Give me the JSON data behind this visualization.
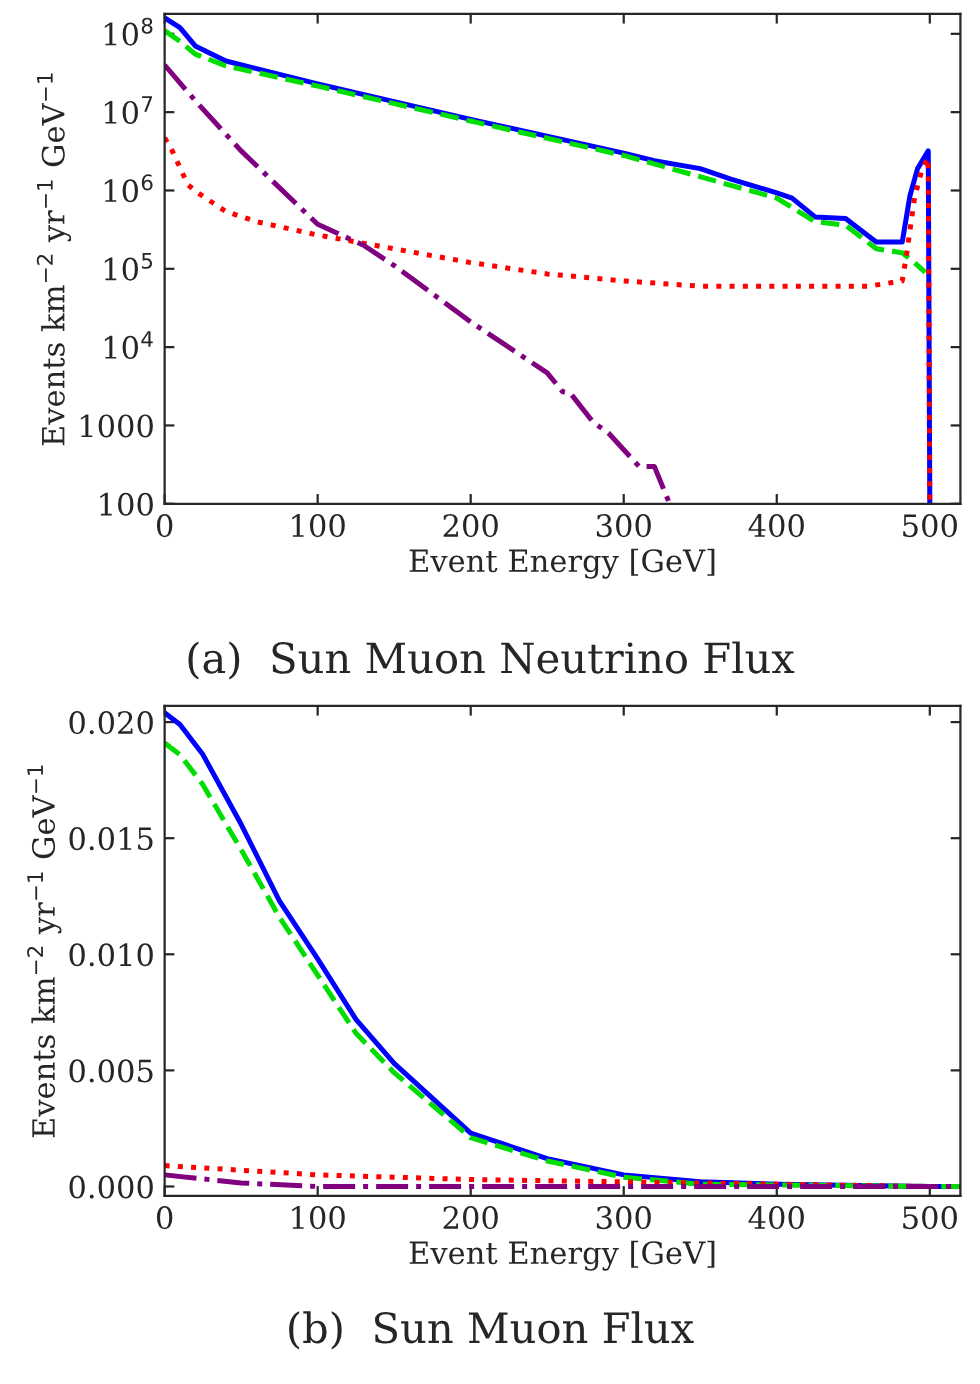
{
  "chart_data": [
    {
      "type": "line",
      "xlabel": "Event Energy [GeV]",
      "ylabel": "Events km$^{−2}$ yr$^{−1}$ GeV$^{−1}$",
      "log": "y",
      "xlim": [
        0,
        520
      ],
      "xticks": [
        0,
        100,
        200,
        300,
        400,
        500
      ],
      "ylim": [
        100,
        180000000
      ],
      "yticks": [
        {
          "value": 100000000,
          "label": "10$^{8}$"
        },
        {
          "value": 10000000,
          "label": "10$^{7}$"
        },
        {
          "value": 1000000,
          "label": "10$^{6}$"
        },
        {
          "value": 100000,
          "label": "10$^{5}$"
        },
        {
          "value": 10000,
          "label": "10$^{4}$"
        },
        1000,
        100
      ],
      "grid": false,
      "legend": false,
      "annotations": [
        "(a)  Sun Muon Neutrino Flux"
      ],
      "series": [
        {
          "color": "#0000ff",
          "line_style": "solid",
          "x": [
            0,
            10,
            20,
            40,
            100,
            200,
            300,
            320,
            350,
            370,
            400,
            410,
            425,
            445,
            465,
            482,
            487,
            492,
            499,
            500
          ],
          "values": [
            160000000,
            120000000,
            70000000,
            45000000,
            23000000,
            8100000,
            3000000,
            2400000,
            1900000,
            1400000,
            930000,
            800000,
            460000,
            440000,
            220000,
            220000,
            850000,
            1900000,
            3200000,
            100
          ]
        },
        {
          "color": "#00dd00",
          "line_style": "dashed",
          "x": [
            0,
            10,
            20,
            40,
            100,
            200,
            300,
            400,
            425,
            445,
            465,
            482,
            490,
            497
          ],
          "values": [
            110000000,
            80000000,
            55000000,
            39000000,
            21500000,
            7700000,
            2800000,
            800000,
            400000,
            360000,
            180000,
            160000,
            120000,
            90000
          ]
        },
        {
          "color": "#ff0000",
          "line_style": "dotted",
          "x": [
            0,
            5,
            15,
            20,
            40,
            60,
            100,
            150,
            200,
            250,
            300,
            350,
            400,
            460,
            482,
            485,
            490,
            495,
            499,
            500
          ],
          "values": [
            4700000,
            3200000,
            1200000,
            980000,
            540000,
            400000,
            270000,
            180000,
            120000,
            86000,
            70000,
            60000,
            60000,
            60000,
            70000,
            160000,
            800000,
            1900000,
            2600000,
            100
          ]
        },
        {
          "color": "#800080",
          "line_style": "dashdot",
          "x": [
            0,
            20,
            50,
            100,
            130,
            150,
            200,
            250,
            260,
            265,
            280,
            290,
            310,
            320,
            330
          ],
          "values": [
            40000000,
            14000000,
            3200000,
            370000,
            200000,
            110000,
            21000,
            4700,
            2700,
            2600,
            1100,
            800,
            300,
            300,
            100
          ]
        }
      ]
    },
    {
      "type": "line",
      "xlabel": "Event Energy [GeV]",
      "ylabel": "Events km$^{−2}$ yr$^{−1}$ GeV$^{−1}$",
      "xlim": [
        0,
        520
      ],
      "xticks": [
        0,
        100,
        200,
        300,
        400,
        500
      ],
      "ylim": [
        -0.0004,
        0.0207
      ],
      "yticks": [
        {
          "value": 0,
          "label": "0.000"
        },
        {
          "value": 0.005,
          "label": "0.005"
        },
        {
          "value": 0.01,
          "label": "0.010"
        },
        {
          "value": 0.015,
          "label": "0.015"
        },
        {
          "value": 0.02,
          "label": "0.020"
        }
      ],
      "grid": false,
      "legend": false,
      "annotations": [
        "(b)  Sun Muon Flux"
      ],
      "series": [
        {
          "color": "#0000ff",
          "line_style": "solid",
          "x": [
            0,
            10,
            25,
            50,
            75,
            100,
            125,
            150,
            200,
            250,
            300,
            350,
            400,
            500,
            520
          ],
          "values": [
            0.0204,
            0.0199,
            0.0186,
            0.0156,
            0.0123,
            0.0098,
            0.0072,
            0.0053,
            0.0023,
            0.0012,
            0.0005,
            0.0002,
            0.0001,
            0,
            0
          ]
        },
        {
          "color": "#00dd00",
          "line_style": "dashed",
          "x": [
            0,
            10,
            25,
            50,
            75,
            100,
            125,
            150,
            200,
            250,
            300,
            350,
            500,
            520
          ],
          "values": [
            0.0191,
            0.0186,
            0.0173,
            0.0145,
            0.0116,
            0.0091,
            0.0066,
            0.0049,
            0.0021,
            0.0011,
            0.0004,
            0.0001,
            0,
            0
          ]
        },
        {
          "color": "#ff0000",
          "line_style": "dotted",
          "x": [
            0,
            100,
            200,
            300,
            400,
            500,
            520
          ],
          "values": [
            0.0009,
            0.0005,
            0.0003,
            0.0002,
            0.0001,
            0,
            0
          ]
        },
        {
          "color": "#800080",
          "line_style": "dashdot",
          "x": [
            0,
            50,
            100,
            500,
            520
          ],
          "values": [
            0.0005,
            0.00015,
            0,
            0,
            0
          ]
        }
      ]
    }
  ]
}
